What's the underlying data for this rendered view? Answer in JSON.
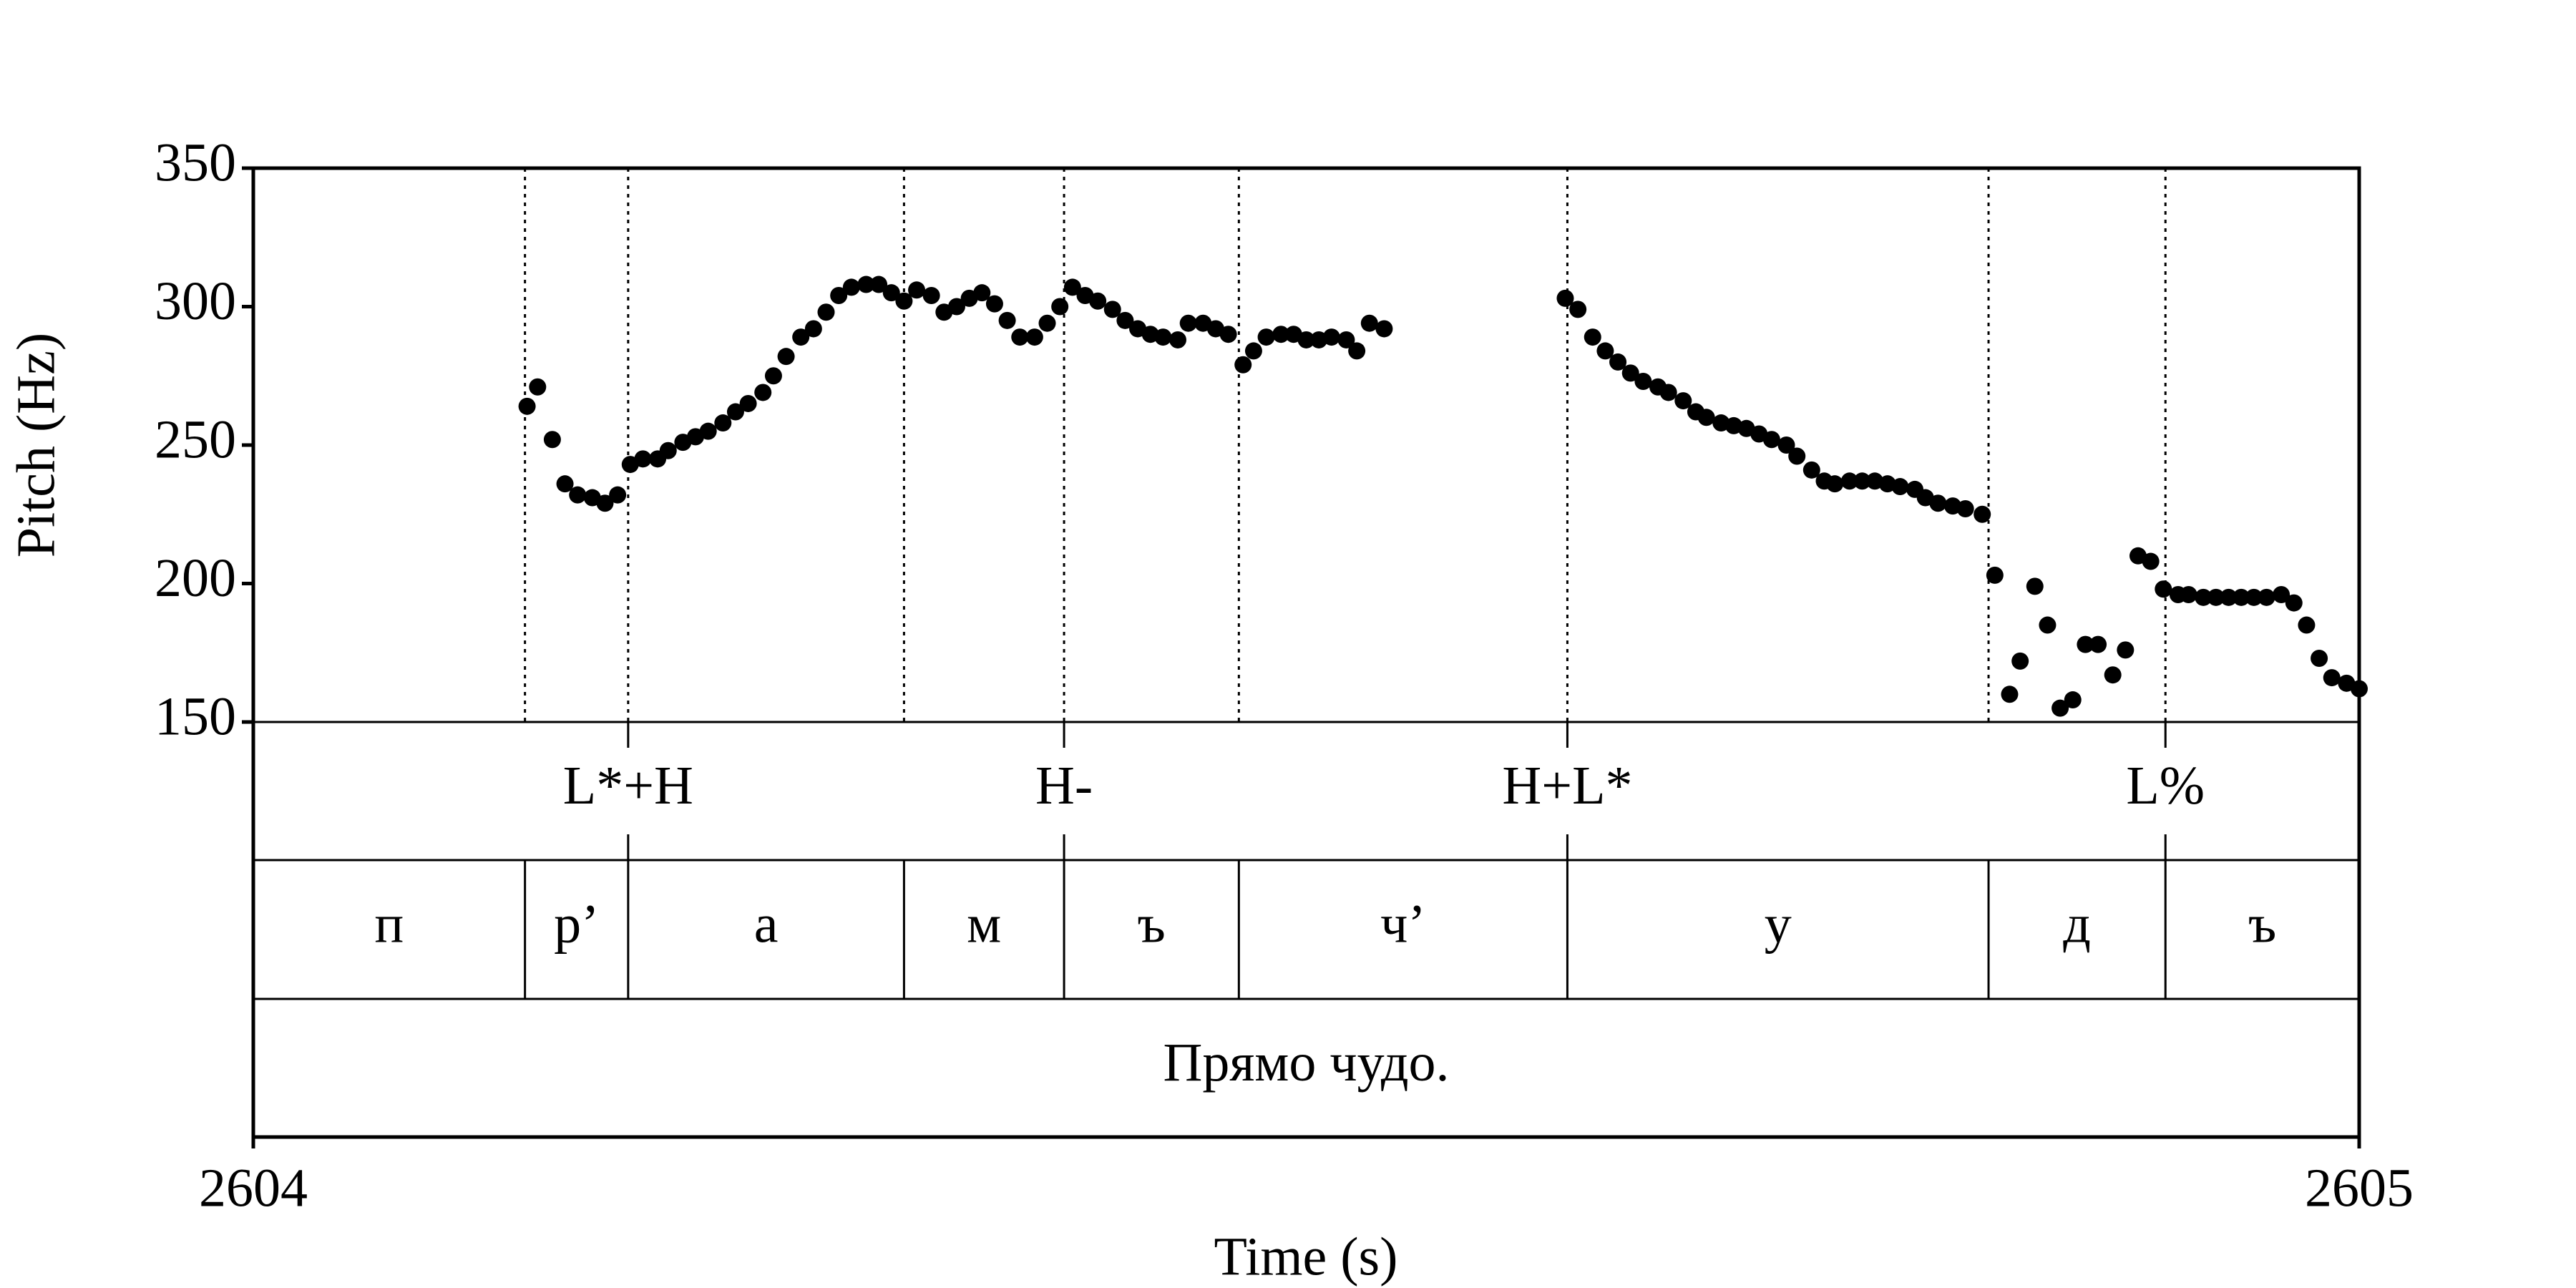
{
  "chart_data": {
    "type": "scatter",
    "xlabel": "Time (s)",
    "ylabel": "Pitch (Hz)",
    "xlim": [
      2604,
      2605
    ],
    "xticks": [
      2604,
      2605
    ],
    "ylim": [
      150,
      350
    ],
    "yticks": [
      150,
      200,
      250,
      300,
      350
    ],
    "color": "#000000",
    "x": [
      2604.13,
      2604.135,
      2604.142,
      2604.148,
      2604.154,
      2604.161,
      2604.167,
      2604.173,
      2604.179,
      2604.185,
      2604.192,
      2604.197,
      2604.204,
      2604.21,
      2604.216,
      2604.223,
      2604.229,
      2604.235,
      2604.242,
      2604.247,
      2604.253,
      2604.26,
      2604.266,
      2604.272,
      2604.278,
      2604.284,
      2604.291,
      2604.297,
      2604.303,
      2604.309,
      2604.315,
      2604.322,
      2604.328,
      2604.334,
      2604.34,
      2604.346,
      2604.352,
      2604.358,
      2604.364,
      2604.371,
      2604.377,
      2604.383,
      2604.389,
      2604.395,
      2604.401,
      2604.408,
      2604.414,
      2604.42,
      2604.426,
      2604.432,
      2604.439,
      2604.444,
      2604.451,
      2604.457,
      2604.463,
      2604.47,
      2604.475,
      2604.481,
      2604.488,
      2604.494,
      2604.5,
      2604.506,
      2604.512,
      2604.519,
      2604.524,
      2604.53,
      2604.537,
      2604.623,
      2604.629,
      2604.636,
      2604.642,
      2604.648,
      2604.654,
      2604.66,
      2604.667,
      2604.672,
      2604.679,
      2604.685,
      2604.69,
      2604.697,
      2604.703,
      2604.709,
      2604.715,
      2604.721,
      2604.728,
      2604.733,
      2604.74,
      2604.746,
      2604.751,
      2604.758,
      2604.764,
      2604.77,
      2604.776,
      2604.782,
      2604.789,
      2604.794,
      2604.8,
      2604.807,
      2604.813,
      2604.821,
      2604.827,
      2604.834,
      2604.839,
      2604.846,
      2604.852,
      2604.858,
      2604.864,
      2604.87,
      2604.876,
      2604.883,
      2604.889,
      2604.895,
      2604.901,
      2604.907,
      2604.914,
      2604.919,
      2604.926,
      2604.932,
      2604.938,
      2604.944,
      2604.95,
      2604.956,
      2604.963,
      2604.969,
      2604.975,
      2604.981,
      2604.987,
      2604.994,
      2605.0
    ],
    "values": [
      264,
      271,
      252,
      236,
      232,
      231,
      229,
      232,
      243,
      245,
      245,
      248,
      251,
      253,
      255,
      258,
      262,
      265,
      269,
      275,
      282,
      289,
      292,
      298,
      304,
      307,
      308,
      308,
      305,
      302,
      306,
      304,
      298,
      300,
      303,
      305,
      301,
      295,
      289,
      289,
      294,
      300,
      307,
      304,
      302,
      299,
      295,
      292,
      290,
      289,
      288,
      294,
      294,
      292,
      290,
      279,
      284,
      289,
      290,
      290,
      288,
      288,
      289,
      288,
      284,
      294,
      292,
      303,
      299,
      289,
      284,
      280,
      276,
      273,
      271,
      269,
      266,
      262,
      260,
      258,
      257,
      256,
      254,
      252,
      250,
      246,
      241,
      237,
      236,
      237,
      237,
      237,
      236,
      235,
      234,
      231,
      229,
      228,
      227,
      225,
      203,
      160,
      172,
      199,
      185,
      155,
      158,
      178,
      178,
      167,
      176,
      210,
      208,
      198,
      196,
      196,
      195,
      195,
      195,
      195,
      195,
      195,
      196,
      193,
      185,
      173,
      166,
      164,
      162
    ],
    "tiers": [
      {
        "points": [
          2604.178,
          2604.385,
          2604.624,
          2604.908
        ],
        "labels": [
          "L*+H",
          "H-",
          "H+L*",
          "L%"
        ]
      },
      {
        "boundaries": [
          2604.129,
          2604.178,
          2604.309,
          2604.385,
          2604.468,
          2604.624,
          2604.824,
          2604.908
        ],
        "labels": [
          "п",
          "р’",
          "а",
          "м",
          "ъ",
          "ч’",
          "у",
          "д",
          "ъ"
        ]
      },
      {
        "boundaries": [],
        "labels": [
          "Прямо чудо."
        ]
      }
    ]
  }
}
